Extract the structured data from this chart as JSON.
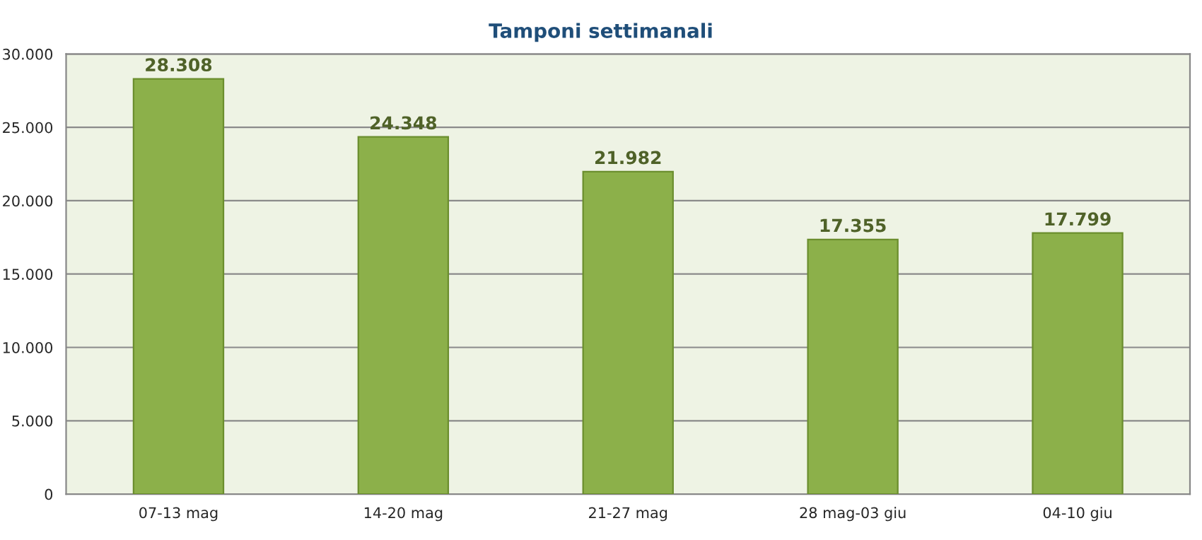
{
  "chart_data": {
    "type": "bar",
    "title": "Tamponi settimanali",
    "categories": [
      "07-13 mag",
      "14-20 mag",
      "21-27 mag",
      "28 mag-03 giu",
      "04-10 giu"
    ],
    "values": [
      28308,
      24348,
      21982,
      17355,
      17799
    ],
    "value_labels": [
      "28.308",
      "24.348",
      "21.982",
      "17.355",
      "17.799"
    ],
    "color": "#8cb04a",
    "ylim": [
      0,
      30000
    ],
    "yticks": [
      {
        "value": 0,
        "label": "0"
      },
      {
        "value": 5000,
        "label": "5.000"
      },
      {
        "value": 10000,
        "label": "10.000"
      },
      {
        "value": 15000,
        "label": "15.000"
      },
      {
        "value": 20000,
        "label": "20.000"
      },
      {
        "value": 25000,
        "label": "25.000"
      },
      {
        "value": 30000,
        "label": "30.000"
      }
    ],
    "grid": "y",
    "legend": false
  }
}
